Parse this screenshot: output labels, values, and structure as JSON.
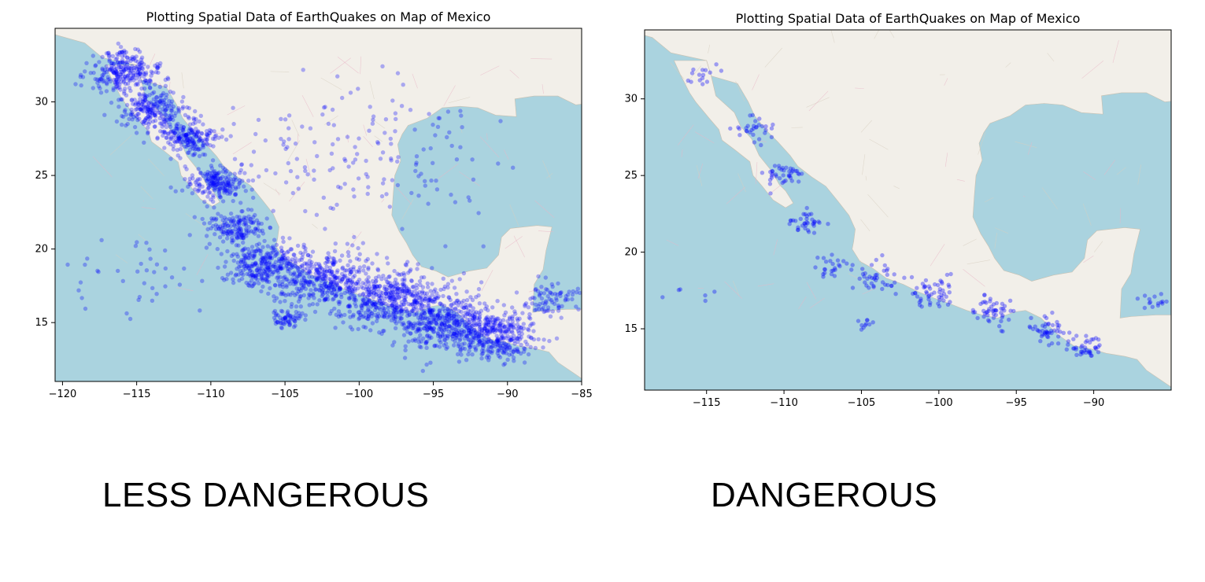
{
  "chart_data": [
    {
      "type": "scatter",
      "title": "Plotting Spatial Data of EarthQuakes on Map of Mexico",
      "xlabel": "",
      "ylabel": "",
      "xlim": [
        -120.5,
        -85
      ],
      "ylim": [
        11,
        35
      ],
      "xticks": [
        -120,
        -115,
        -110,
        -105,
        -100,
        -95,
        -90,
        -85
      ],
      "yticks": [
        15,
        20,
        25,
        30
      ],
      "xtick_labels": [
        "−120",
        "−115",
        "−110",
        "−105",
        "−100",
        "−95",
        "−90",
        "−85"
      ],
      "ytick_labels": [
        "15",
        "20",
        "25",
        "30"
      ],
      "marker_color": "#0000ff",
      "marker_alpha": 0.3,
      "grid": false,
      "background": "map of Mexico (land #f2efe9, water #aad3df)",
      "point_count_estimate": 3000,
      "series": [
        {
          "clusters": [
            {
              "lon": -116,
              "lat": 32,
              "spread": 1.2,
              "n": 260
            },
            {
              "lon": -114,
              "lat": 29.5,
              "spread": 1.1,
              "n": 220
            },
            {
              "lon": -111.5,
              "lat": 27.5,
              "spread": 1.0,
              "n": 200
            },
            {
              "lon": -109.5,
              "lat": 24.5,
              "spread": 1.0,
              "n": 200
            },
            {
              "lon": -108.5,
              "lat": 21.5,
              "spread": 1.0,
              "n": 150
            },
            {
              "lon": -106.5,
              "lat": 19,
              "spread": 1.3,
              "n": 280
            },
            {
              "lon": -102.5,
              "lat": 18,
              "spread": 1.6,
              "n": 380
            },
            {
              "lon": -98,
              "lat": 16.5,
              "spread": 1.7,
              "n": 460
            },
            {
              "lon": -94,
              "lat": 15,
              "spread": 1.6,
              "n": 420
            },
            {
              "lon": -90.5,
              "lat": 14,
              "spread": 1.3,
              "n": 300
            },
            {
              "lon": -104.8,
              "lat": 15.3,
              "spread": 0.5,
              "n": 60
            },
            {
              "lon": -100,
              "lat": 26,
              "spread": 4.5,
              "n": 170
            },
            {
              "lon": -87,
              "lat": 16.5,
              "spread": 1.0,
              "n": 80
            },
            {
              "lon": -115,
              "lat": 18.5,
              "spread": 2.2,
              "n": 40
            }
          ]
        }
      ]
    },
    {
      "type": "scatter",
      "title": "Plotting Spatial Data of EarthQuakes on Map of Mexico",
      "xlabel": "",
      "ylabel": "",
      "xlim": [
        -119,
        -85
      ],
      "ylim": [
        11,
        34.5
      ],
      "xticks": [
        -115,
        -110,
        -105,
        -100,
        -95,
        -90
      ],
      "yticks": [
        15,
        20,
        25,
        30
      ],
      "xtick_labels": [
        "−115",
        "−110",
        "−105",
        "−100",
        "−95",
        "−90"
      ],
      "ytick_labels": [
        "15",
        "20",
        "25",
        "30"
      ],
      "marker_color": "#0000ff",
      "marker_alpha": 0.35,
      "grid": false,
      "background": "map of Mexico (land #f2efe9, water #aad3df)",
      "point_count_estimate": 420,
      "series": [
        {
          "clusters": [
            {
              "lon": -115.5,
              "lat": 31.5,
              "spread": 0.6,
              "n": 15
            },
            {
              "lon": -112,
              "lat": 28,
              "spread": 0.6,
              "n": 30
            },
            {
              "lon": -110,
              "lat": 25,
              "spread": 0.6,
              "n": 40
            },
            {
              "lon": -108.5,
              "lat": 22,
              "spread": 0.6,
              "n": 35
            },
            {
              "lon": -107,
              "lat": 19,
              "spread": 0.6,
              "n": 25
            },
            {
              "lon": -104,
              "lat": 18.2,
              "spread": 0.8,
              "n": 40
            },
            {
              "lon": -100.5,
              "lat": 17.3,
              "spread": 0.8,
              "n": 50
            },
            {
              "lon": -96.5,
              "lat": 16.2,
              "spread": 0.8,
              "n": 50
            },
            {
              "lon": -93,
              "lat": 14.8,
              "spread": 0.7,
              "n": 45
            },
            {
              "lon": -90.5,
              "lat": 13.8,
              "spread": 0.6,
              "n": 40
            },
            {
              "lon": -104.5,
              "lat": 15.3,
              "spread": 0.4,
              "n": 10
            },
            {
              "lon": -86,
              "lat": 16.8,
              "spread": 0.5,
              "n": 15
            },
            {
              "lon": -116,
              "lat": 18,
              "spread": 1.5,
              "n": 6
            }
          ]
        }
      ]
    }
  ],
  "captions": {
    "left": "LESS DANGEROUS",
    "right": "DANGEROUS"
  },
  "colors": {
    "land": "#f2efe9",
    "water": "#aad3df",
    "points": "#0000ff"
  }
}
